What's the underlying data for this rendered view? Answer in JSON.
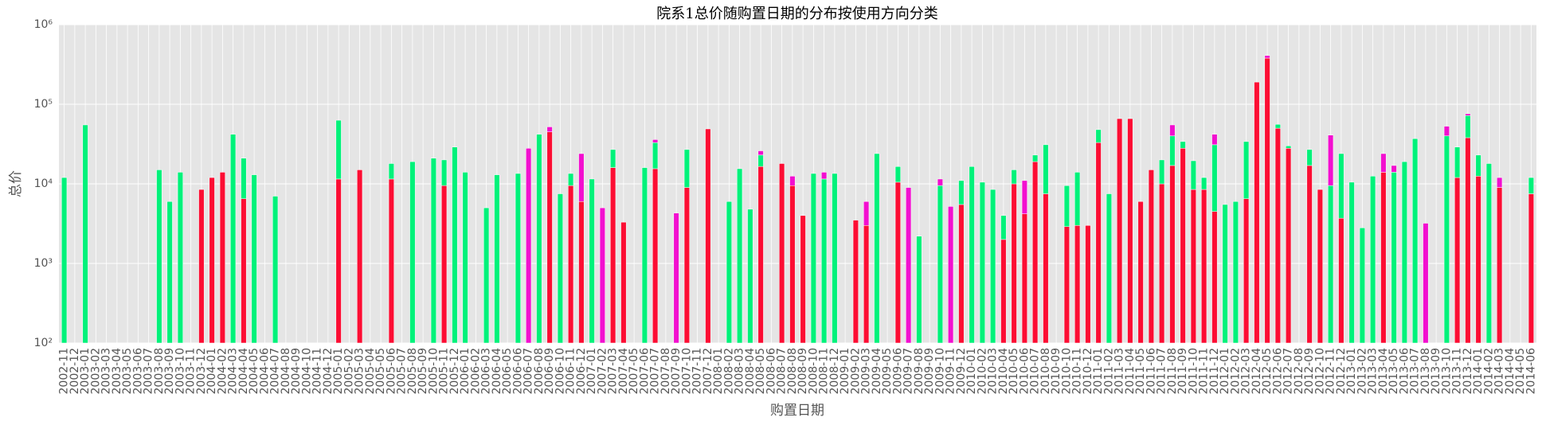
{
  "chart_data": {
    "type": "bar",
    "stacked": true,
    "title": "院系1总价随购置日期的分布按使用方向分类",
    "x_label": "购置日期",
    "y_label": "总价",
    "log_scale": true,
    "grid": true,
    "ylim": [
      100,
      1000000
    ],
    "yticks": [
      {
        "value": 100,
        "label": "10²"
      },
      {
        "value": 1000,
        "label": "10³"
      },
      {
        "value": 10000,
        "label": "10⁴"
      },
      {
        "value": 100000,
        "label": "10⁵"
      },
      {
        "value": 1000000,
        "label": "10⁶"
      }
    ],
    "categories": [
      "2002-11",
      "2002-12",
      "2003-01",
      "2003-02",
      "2003-03",
      "2003-04",
      "2003-05",
      "2003-06",
      "2003-07",
      "2003-08",
      "2003-09",
      "2003-10",
      "2003-11",
      "2003-12",
      "2004-01",
      "2004-02",
      "2004-03",
      "2004-04",
      "2004-05",
      "2004-06",
      "2004-07",
      "2004-08",
      "2004-09",
      "2004-10",
      "2004-11",
      "2004-12",
      "2005-01",
      "2005-02",
      "2005-03",
      "2005-04",
      "2005-05",
      "2005-06",
      "2005-07",
      "2005-08",
      "2005-09",
      "2005-10",
      "2005-11",
      "2005-12",
      "2006-01",
      "2006-02",
      "2006-03",
      "2006-04",
      "2006-05",
      "2006-06",
      "2006-07",
      "2006-08",
      "2006-09",
      "2006-10",
      "2006-11",
      "2006-12",
      "2007-01",
      "2007-02",
      "2007-03",
      "2007-04",
      "2007-05",
      "2007-06",
      "2007-07",
      "2007-08",
      "2007-09",
      "2007-10",
      "2007-11",
      "2007-12",
      "2008-01",
      "2008-02",
      "2008-03",
      "2008-04",
      "2008-05",
      "2008-06",
      "2008-07",
      "2008-08",
      "2008-09",
      "2008-10",
      "2008-11",
      "2008-12",
      "2009-01",
      "2009-02",
      "2009-03",
      "2009-04",
      "2009-05",
      "2009-06",
      "2009-07",
      "2009-08",
      "2009-09",
      "2009-10",
      "2009-11",
      "2009-12",
      "2010-01",
      "2010-02",
      "2010-03",
      "2010-04",
      "2010-05",
      "2010-06",
      "2010-07",
      "2010-08",
      "2010-09",
      "2010-10",
      "2010-11",
      "2010-12",
      "2011-01",
      "2011-02",
      "2011-03",
      "2011-04",
      "2011-05",
      "2011-06",
      "2011-07",
      "2011-08",
      "2011-09",
      "2011-10",
      "2011-11",
      "2011-12",
      "2012-01",
      "2012-02",
      "2012-03",
      "2012-04",
      "2012-05",
      "2012-06",
      "2012-07",
      "2012-08",
      "2012-09",
      "2012-10",
      "2012-11",
      "2012-12",
      "2013-01",
      "2013-02",
      "2013-03",
      "2013-04",
      "2013-05",
      "2013-06",
      "2013-07",
      "2013-08",
      "2013-09",
      "2013-10",
      "2013-11",
      "2013-12",
      "2014-01",
      "2014-02",
      "2014-03",
      "2014-04",
      "2014-05",
      "2014-06"
    ],
    "series": [
      {
        "color": "#fc0d33",
        "values": [
          null,
          null,
          null,
          null,
          null,
          null,
          null,
          null,
          null,
          null,
          null,
          null,
          null,
          8500,
          12000,
          14000,
          null,
          6500,
          null,
          null,
          null,
          null,
          null,
          null,
          null,
          null,
          11500,
          null,
          15000,
          null,
          null,
          11500,
          null,
          null,
          null,
          null,
          9500,
          null,
          null,
          null,
          null,
          null,
          null,
          null,
          null,
          null,
          45000,
          null,
          9500,
          6000,
          null,
          null,
          16000,
          3300,
          null,
          null,
          15500,
          null,
          null,
          9000,
          null,
          49000,
          null,
          null,
          null,
          null,
          16500,
          null,
          18000,
          9500,
          4000,
          null,
          null,
          null,
          null,
          3500,
          3000,
          null,
          null,
          10500,
          null,
          null,
          null,
          null,
          null,
          5500,
          null,
          null,
          null,
          2000,
          10000,
          4200,
          19000,
          7500,
          null,
          2900,
          3000,
          3000,
          33000,
          null,
          66000,
          66000,
          6000,
          15000,
          10000,
          17000,
          28000,
          8500,
          8500,
          4500,
          null,
          null,
          6500,
          190000,
          380000,
          50000,
          28000,
          null,
          17000,
          8500,
          null,
          3700,
          null,
          null,
          null,
          14000,
          null,
          null,
          null,
          null,
          null,
          null,
          12000,
          38000,
          12500,
          null,
          9000,
          null,
          null,
          7500
        ]
      },
      {
        "color": "#00f27a",
        "values": [
          12000,
          null,
          55000,
          null,
          null,
          null,
          null,
          null,
          null,
          15000,
          6000,
          14000,
          null,
          null,
          null,
          null,
          42000,
          14500,
          13000,
          null,
          7000,
          null,
          null,
          null,
          null,
          null,
          51500,
          null,
          null,
          null,
          null,
          6500,
          null,
          19000,
          null,
          21000,
          10500,
          29000,
          14000,
          null,
          5000,
          13000,
          null,
          13500,
          null,
          42000,
          null,
          7500,
          4000,
          null,
          11500,
          null,
          11000,
          null,
          null,
          16000,
          17500,
          null,
          null,
          18000,
          null,
          null,
          null,
          6000,
          15500,
          4800,
          6500,
          null,
          null,
          null,
          null,
          13500,
          11500,
          13500,
          null,
          null,
          null,
          24000,
          null,
          6000,
          null,
          2200,
          null,
          9500,
          null,
          5500,
          16500,
          10500,
          8500,
          2000,
          5000,
          null,
          4000,
          23500,
          null,
          6600,
          11000,
          null,
          15000,
          7500,
          null,
          null,
          null,
          null,
          10000,
          23000,
          6000,
          11000,
          3500,
          26500,
          5500,
          6000,
          27500,
          null,
          null,
          6000,
          2000,
          null,
          10000,
          null,
          9500,
          20300,
          10500,
          2800,
          12500,
          null,
          14000,
          19000,
          37000,
          null,
          null,
          40000,
          17000,
          34000,
          10500,
          18000,
          null,
          null,
          null,
          4500
        ]
      },
      {
        "color": "#f20fcf",
        "values": [
          null,
          null,
          null,
          null,
          null,
          null,
          null,
          null,
          null,
          null,
          null,
          null,
          null,
          null,
          null,
          null,
          null,
          null,
          null,
          null,
          null,
          null,
          null,
          null,
          null,
          null,
          null,
          null,
          null,
          null,
          null,
          null,
          null,
          null,
          null,
          null,
          null,
          null,
          null,
          null,
          null,
          null,
          null,
          null,
          28000,
          null,
          7000,
          null,
          null,
          18000,
          null,
          5000,
          null,
          null,
          null,
          null,
          3000,
          null,
          4300,
          null,
          null,
          null,
          null,
          null,
          null,
          null,
          3000,
          null,
          null,
          3000,
          null,
          null,
          2500,
          null,
          null,
          null,
          3000,
          null,
          null,
          null,
          9000,
          null,
          null,
          2000,
          5200,
          null,
          null,
          null,
          null,
          null,
          null,
          6800,
          null,
          null,
          null,
          null,
          null,
          null,
          null,
          null,
          null,
          null,
          null,
          null,
          null,
          15000,
          null,
          null,
          null,
          11000,
          null,
          null,
          null,
          null,
          30000,
          null,
          null,
          null,
          null,
          null,
          31500,
          null,
          null,
          null,
          null,
          10000,
          3000,
          null,
          null,
          3200,
          null,
          13000,
          null,
          4000,
          null,
          null,
          3000,
          null,
          null,
          null
        ]
      }
    ]
  }
}
